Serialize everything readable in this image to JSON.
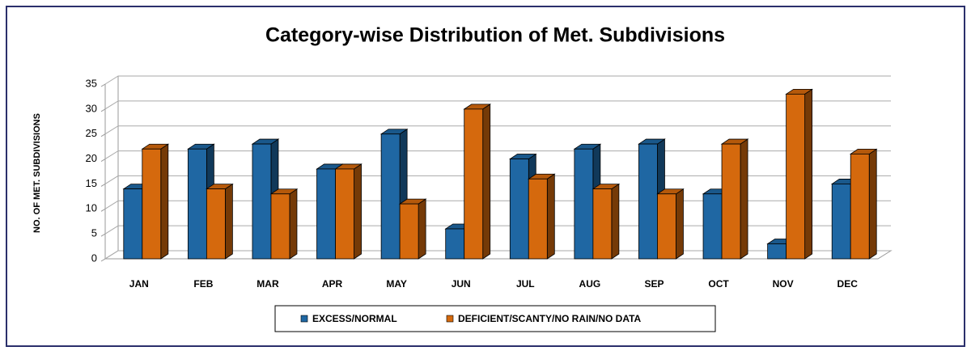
{
  "chart_data": {
    "type": "bar3d",
    "title": "Category-wise Distribution of Met. Subdivisions",
    "y_label": "NO. OF MET. SUBDIVISIONS",
    "categories": [
      "JAN",
      "FEB",
      "MAR",
      "APR",
      "MAY",
      "JUN",
      "JUL",
      "AUG",
      "SEP",
      "OCT",
      "NOV",
      "DEC"
    ],
    "series": [
      {
        "name": "EXCESS/NORMAL",
        "color": "#1f67a3",
        "values": [
          14,
          22,
          23,
          18,
          25,
          6,
          20,
          22,
          23,
          13,
          3,
          15
        ]
      },
      {
        "name": "DEFICIENT/SCANTY/NO RAIN/NO DATA",
        "color": "#d5690d",
        "values": [
          22,
          14,
          13,
          18,
          11,
          30,
          16,
          14,
          13,
          23,
          33,
          21
        ]
      }
    ],
    "ylim": [
      0,
      35
    ],
    "yticks": [
      0,
      5,
      10,
      15,
      20,
      25,
      30,
      35
    ],
    "grid": true,
    "legend": "bottom"
  }
}
